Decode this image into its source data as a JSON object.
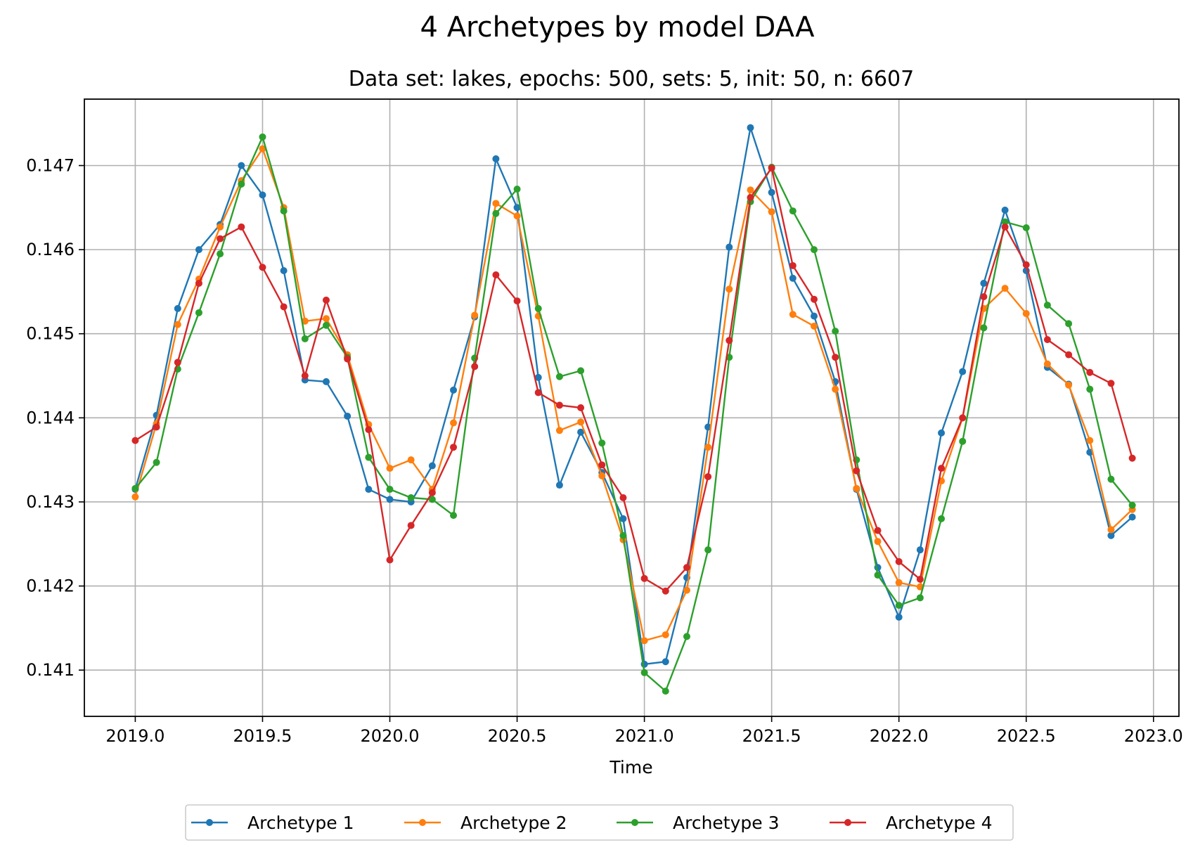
{
  "chart_data": {
    "type": "line",
    "title": "4 Archetypes by model DAA",
    "subtitle": "Data set: lakes, epochs: 500, sets: 5, init: 50, n: 6607",
    "xlabel": "Time",
    "ylabel": "",
    "xlim": [
      2018.8,
      2023.1
    ],
    "ylim": [
      0.14045,
      0.14779
    ],
    "xticks": [
      "2019.0",
      "2019.5",
      "2020.0",
      "2020.5",
      "2021.0",
      "2021.5",
      "2022.0",
      "2022.5",
      "2023.0"
    ],
    "yticks": [
      "0.141",
      "0.142",
      "0.143",
      "0.144",
      "0.145",
      "0.146",
      "0.147"
    ],
    "grid": true,
    "legend_position": "bottom-center",
    "x": [
      2019.0,
      2019.0833,
      2019.1667,
      2019.25,
      2019.3333,
      2019.4167,
      2019.5,
      2019.5833,
      2019.6667,
      2019.75,
      2019.8333,
      2019.9167,
      2020.0,
      2020.0833,
      2020.1667,
      2020.25,
      2020.3333,
      2020.4167,
      2020.5,
      2020.5833,
      2020.6667,
      2020.75,
      2020.8333,
      2020.9167,
      2021.0,
      2021.0833,
      2021.1667,
      2021.25,
      2021.3333,
      2021.4167,
      2021.5,
      2021.5833,
      2021.6667,
      2021.75,
      2021.8333,
      2021.9167,
      2022.0,
      2022.0833,
      2022.1667,
      2022.25,
      2022.3333,
      2022.4167,
      2022.5,
      2022.5833,
      2022.6667,
      2022.75,
      2022.8333,
      2022.9167
    ],
    "series": [
      {
        "name": "Archetype 1",
        "color": "#1f77b4",
        "values": [
          0.14315,
          0.14403,
          0.1453,
          0.146,
          0.1463,
          0.147,
          0.14665,
          0.14575,
          0.14445,
          0.14443,
          0.14402,
          0.14315,
          0.14303,
          0.143,
          0.14343,
          0.14433,
          0.1452,
          0.14708,
          0.1465,
          0.14448,
          0.1432,
          0.14383,
          0.14335,
          0.1428,
          0.14107,
          0.1411,
          0.1421,
          0.14389,
          0.14603,
          0.14745,
          0.14668,
          0.14566,
          0.14521,
          0.14443,
          0.14315,
          0.14222,
          0.14163,
          0.14243,
          0.14382,
          0.14455,
          0.1456,
          0.14647,
          0.14575,
          0.1446,
          0.1444,
          0.14359,
          0.1426,
          0.14282
        ]
      },
      {
        "name": "Archetype 2",
        "color": "#ff7f0e",
        "values": [
          0.14306,
          0.14393,
          0.14511,
          0.14565,
          0.14627,
          0.14682,
          0.1472,
          0.1465,
          0.14515,
          0.14518,
          0.14475,
          0.14392,
          0.1434,
          0.1435,
          0.14315,
          0.14394,
          0.14522,
          0.14655,
          0.1464,
          0.14521,
          0.14385,
          0.14395,
          0.14331,
          0.14255,
          0.14135,
          0.14142,
          0.14195,
          0.14365,
          0.14553,
          0.14671,
          0.14645,
          0.14523,
          0.14509,
          0.14434,
          0.14316,
          0.14253,
          0.14204,
          0.14199,
          0.14325,
          0.144,
          0.1453,
          0.14554,
          0.14524,
          0.14464,
          0.14439,
          0.14373,
          0.14267,
          0.14291
        ]
      },
      {
        "name": "Archetype 3",
        "color": "#2ca02c",
        "values": [
          0.14316,
          0.14347,
          0.14458,
          0.14525,
          0.14595,
          0.14678,
          0.14734,
          0.14646,
          0.14494,
          0.1451,
          0.14472,
          0.14353,
          0.14315,
          0.14305,
          0.14303,
          0.14284,
          0.14471,
          0.14643,
          0.14672,
          0.1453,
          0.14449,
          0.14456,
          0.1437,
          0.1426,
          0.14097,
          0.14075,
          0.1414,
          0.14243,
          0.14472,
          0.14657,
          0.14698,
          0.14646,
          0.146,
          0.14503,
          0.1435,
          0.14213,
          0.14177,
          0.14186,
          0.1428,
          0.14372,
          0.14507,
          0.14633,
          0.14626,
          0.14534,
          0.14512,
          0.14434,
          0.14327,
          0.14296
        ]
      },
      {
        "name": "Archetype 4",
        "color": "#d62728",
        "values": [
          0.14373,
          0.14389,
          0.14466,
          0.1456,
          0.14613,
          0.14627,
          0.14579,
          0.14532,
          0.1445,
          0.1454,
          0.1447,
          0.14386,
          0.14231,
          0.14272,
          0.14311,
          0.14365,
          0.14461,
          0.1457,
          0.14539,
          0.1443,
          0.14415,
          0.14412,
          0.14344,
          0.14305,
          0.14209,
          0.14194,
          0.14222,
          0.1433,
          0.14492,
          0.14662,
          0.14697,
          0.14581,
          0.14541,
          0.14472,
          0.14337,
          0.14266,
          0.14229,
          0.14208,
          0.1434,
          0.144,
          0.14544,
          0.14627,
          0.14582,
          0.14493,
          0.14475,
          0.14454,
          0.14441,
          0.14352
        ]
      }
    ]
  }
}
